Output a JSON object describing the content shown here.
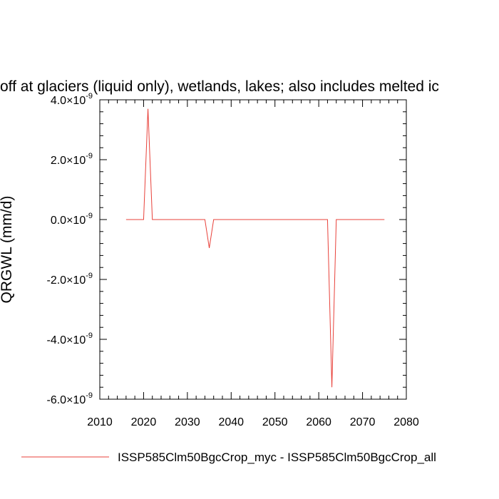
{
  "chart_data": {
    "type": "line",
    "title": "off at glaciers (liquid only), wetlands, lakes; also includes melted ic",
    "ylabel": "QRGWL  (mm/d)",
    "xlabel": "",
    "xlim": [
      2010,
      2080
    ],
    "ylim": [
      -6e-09,
      4e-09
    ],
    "x_ticks": [
      2010,
      2020,
      2030,
      2040,
      2050,
      2060,
      2070,
      2080
    ],
    "x_tick_labels": [
      "2010",
      "2020",
      "2030",
      "2040",
      "2050",
      "2060",
      "2070",
      "2080"
    ],
    "y_ticks": [
      4e-09,
      2e-09,
      0.0,
      -2e-09,
      -4e-09,
      -6e-09
    ],
    "y_tick_mantissas": [
      "4.0",
      "2.0",
      "0.0",
      "-2.0",
      "-4.0",
      "-6.0"
    ],
    "y_tick_base": "×10",
    "y_tick_exponent": "-9",
    "grid": false,
    "legend_position": "bottom",
    "series": [
      {
        "name": "ISSP585Clm50BgcCrop_myc - ISSP585Clm50BgcCrop_all",
        "color": "#e8413a",
        "x": [
          2016,
          2020,
          2021,
          2022,
          2034,
          2035,
          2036,
          2062,
          2063,
          2064,
          2075
        ],
        "y": [
          0.0,
          0.0,
          3.7e-09,
          0.0,
          0.0,
          -9.5e-10,
          0.0,
          0.0,
          -5.6e-09,
          0.0,
          0.0
        ]
      }
    ]
  }
}
